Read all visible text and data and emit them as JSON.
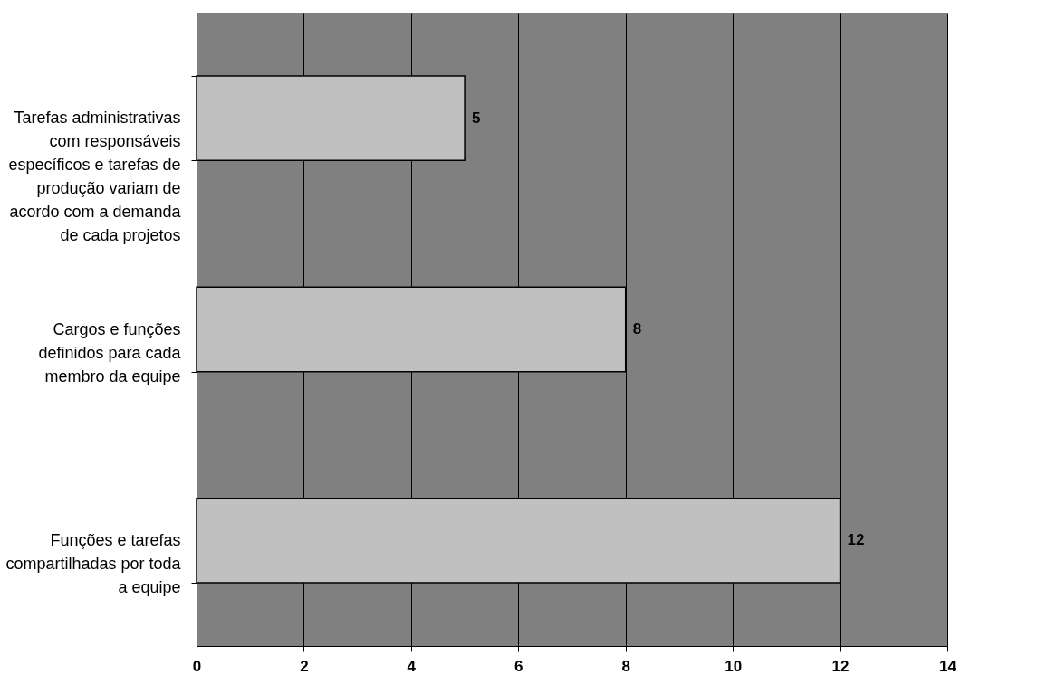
{
  "chart_data": {
    "type": "bar",
    "orientation": "horizontal",
    "categories": [
      "Tarefas administrativas\ncom responsáveis\nespecíficos e tarefas de\nprodução variam de\nacordo com a demanda\nde cada projetos",
      "Cargos e funções\ndefinidos para cada\nmembro da equipe",
      "Funções e tarefas\ncompartilhadas por toda\na equipe"
    ],
    "values": [
      5,
      8,
      12
    ],
    "color": "#c0c0c0",
    "xlim": [
      0,
      14
    ],
    "xticks": [
      0,
      2,
      4,
      6,
      8,
      10,
      12,
      14
    ],
    "grid": "x",
    "data_labels": true
  }
}
